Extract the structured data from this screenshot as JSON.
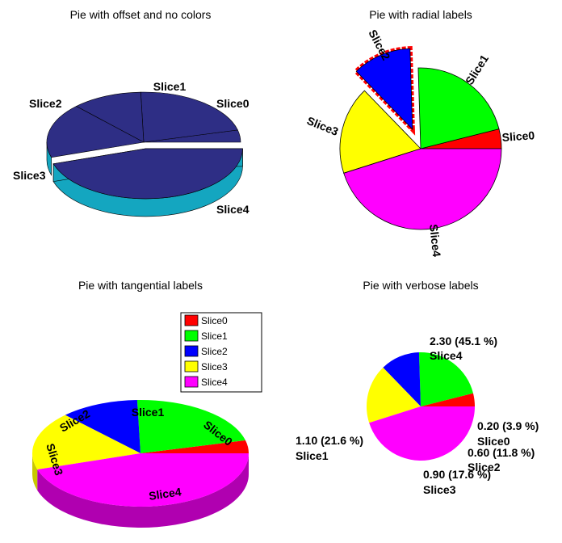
{
  "chart_data": [
    {
      "type": "pie",
      "title": "Pie with offset and no colors",
      "style": "3d",
      "exploded_slice": "Slice4",
      "top_color": "#2e2e85",
      "side_color": "#14a6c0",
      "slices": [
        {
          "name": "Slice0",
          "value": 0.2
        },
        {
          "name": "Slice1",
          "value": 1.1
        },
        {
          "name": "Slice2",
          "value": 0.6
        },
        {
          "name": "Slice3",
          "value": 0.9
        },
        {
          "name": "Slice4",
          "value": 2.3
        }
      ]
    },
    {
      "type": "pie",
      "title": "Pie with radial labels",
      "label_orientation": "radial",
      "exploded_slice": "Slice2",
      "highlight_border": "#ff0000",
      "slices": [
        {
          "name": "Slice0",
          "value": 0.2,
          "color": "#ff0000"
        },
        {
          "name": "Slice1",
          "value": 1.1,
          "color": "#00ff00"
        },
        {
          "name": "Slice2",
          "value": 0.6,
          "color": "#0000ff"
        },
        {
          "name": "Slice3",
          "value": 0.9,
          "color": "#ffff00"
        },
        {
          "name": "Slice4",
          "value": 2.3,
          "color": "#ff00ff"
        }
      ]
    },
    {
      "type": "pie",
      "title": "Pie with tangential labels",
      "style": "3d",
      "label_orientation": "tangential",
      "legend": {
        "placement": "top-right",
        "entries": [
          {
            "name": "Slice0",
            "color": "#ff0000"
          },
          {
            "name": "Slice1",
            "color": "#00ff00"
          },
          {
            "name": "Slice2",
            "color": "#0000ff"
          },
          {
            "name": "Slice3",
            "color": "#ffff00"
          },
          {
            "name": "Slice4",
            "color": "#ff00ff"
          }
        ]
      },
      "slices": [
        {
          "name": "Slice0",
          "value": 0.2,
          "color": "#ff0000",
          "side_color": "#c80000"
        },
        {
          "name": "Slice1",
          "value": 1.1,
          "color": "#00ff00",
          "side_color": "#00c800"
        },
        {
          "name": "Slice2",
          "value": 0.6,
          "color": "#0000ff",
          "side_color": "#0000c8"
        },
        {
          "name": "Slice3",
          "value": 0.9,
          "color": "#ffff00",
          "side_color": "#c8c800"
        },
        {
          "name": "Slice4",
          "value": 2.3,
          "color": "#ff00ff",
          "side_color": "#b000b0"
        }
      ]
    },
    {
      "type": "pie",
      "title": "Pie with verbose labels",
      "slices": [
        {
          "name": "Slice0",
          "value": 0.2,
          "color": "#ff0000",
          "value_label": "0.20 (3.9 %)"
        },
        {
          "name": "Slice1",
          "value": 1.1,
          "color": "#00ff00",
          "value_label": "1.10 (21.6 %)"
        },
        {
          "name": "Slice2",
          "value": 0.6,
          "color": "#0000ff",
          "value_label": "0.60 (11.8 %)"
        },
        {
          "name": "Slice3",
          "value": 0.9,
          "color": "#ffff00",
          "value_label": "0.90 (17.6 %)"
        },
        {
          "name": "Slice4",
          "value": 2.3,
          "color": "#ff00ff",
          "value_label": "2.30 (45.1 %)"
        }
      ]
    }
  ]
}
